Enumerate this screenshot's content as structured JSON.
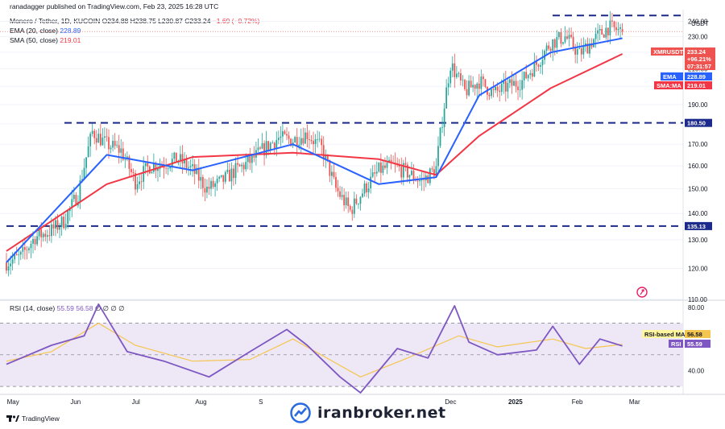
{
  "header": {
    "publisher": "ranadagger published on TradingView.com, Feb 23, 2025 16:28 UTC",
    "symbol_line": "Monero / Tether, 1D, KUCOIN",
    "ohlc": {
      "o_label": "O",
      "o": "234.88",
      "h_label": "H",
      "h": "238.75",
      "l_label": "L",
      "l": "230.87",
      "c_label": "C",
      "c": "233.24",
      "change": "−1.69 (−0.72%)"
    },
    "ema_line_label": "EMA (20, close)",
    "ema_value": "228.89",
    "sma_line_label": "SMA (50, close)",
    "sma_value": "219.01",
    "rsi_line_label": "RSI (14, close)",
    "rsi_values": "55.59  56.58",
    "rsi_extra": "∅ ∅ ∅ ∅"
  },
  "axis": {
    "unit": "USDT",
    "price_ticks": [
      "240.00",
      "230.00",
      "220.00",
      "210.00",
      "200.00",
      "190.00",
      "180.00",
      "170.00",
      "160.00",
      "150.00",
      "140.00",
      "130.00",
      "120.00",
      "110.00"
    ],
    "rsi_ticks": [
      "80.00",
      "40.00"
    ],
    "time_ticks": [
      "May",
      "Jun",
      "Jul",
      "Aug",
      "S",
      "Dec",
      "2025",
      "Feb",
      "Mar"
    ]
  },
  "badges": {
    "symbol": "XMRUSDT",
    "price": "233.24",
    "change_pct": "+96.21%",
    "countdown": "07:31:57",
    "ema_tag": "EMA",
    "ema_val": "228.89",
    "sma_tag": "SMA:MA",
    "sma_val": "219.01",
    "level_high": "180.50",
    "level_low": "135.13",
    "rsi_ma_tag": "RSI-based MA",
    "rsi_ma_val": "56.58",
    "rsi_tag": "RSI",
    "rsi_val": "55.59"
  },
  "footer": {
    "tv_brand": "TradingView",
    "watermark": "iranbroker.net"
  },
  "colors": {
    "up": "#26a69a",
    "down": "#ef5350",
    "ema": "#2962ff",
    "sma": "#f23645",
    "rsi": "#7e57c2",
    "rsi_ma": "#f5c64f",
    "level": "#1c2a8c",
    "rsi_band": "#ede7f6"
  },
  "chart_data": [
    {
      "type": "candlestick",
      "title": "Monero / Tether, 1D, KUCOIN",
      "ylim": [
        110,
        248
      ],
      "yscale": "log",
      "ylabel": "USDT",
      "x_range": [
        "2024-04-28",
        "2025-03-05"
      ],
      "candles_anchor_close": [
        [
          "2024-04-28",
          122
        ],
        [
          "2024-05-05",
          124
        ],
        [
          "2024-05-12",
          131
        ],
        [
          "2024-05-19",
          133
        ],
        [
          "2024-05-26",
          137
        ],
        [
          "2024-06-02",
          148
        ],
        [
          "2024-06-09",
          176
        ],
        [
          "2024-06-16",
          170
        ],
        [
          "2024-06-23",
          167
        ],
        [
          "2024-06-30",
          153
        ],
        [
          "2024-07-07",
          160
        ],
        [
          "2024-07-14",
          161
        ],
        [
          "2024-07-21",
          163
        ],
        [
          "2024-07-28",
          158
        ],
        [
          "2024-08-04",
          150
        ],
        [
          "2024-08-11",
          153
        ],
        [
          "2024-08-18",
          158
        ],
        [
          "2024-08-25",
          162
        ],
        [
          "2024-09-01",
          168
        ],
        [
          "2024-09-08",
          173
        ],
        [
          "2024-09-15",
          172
        ],
        [
          "2024-09-22",
          175
        ],
        [
          "2024-09-29",
          168
        ],
        [
          "2024-10-06",
          150
        ],
        [
          "2024-10-13",
          141
        ],
        [
          "2024-10-20",
          150
        ],
        [
          "2024-10-27",
          158
        ],
        [
          "2024-11-03",
          160
        ],
        [
          "2024-11-10",
          157
        ],
        [
          "2024-11-17",
          153
        ],
        [
          "2024-11-24",
          159
        ],
        [
          "2024-12-01",
          213
        ],
        [
          "2024-12-08",
          197
        ],
        [
          "2024-12-15",
          203
        ],
        [
          "2024-12-22",
          196
        ],
        [
          "2024-12-29",
          200
        ],
        [
          "2025-01-05",
          203
        ],
        [
          "2025-01-12",
          213
        ],
        [
          "2025-01-19",
          226
        ],
        [
          "2025-01-26",
          230
        ],
        [
          "2025-02-02",
          219
        ],
        [
          "2025-02-09",
          228
        ],
        [
          "2025-02-16",
          236
        ],
        [
          "2025-02-23",
          233.24
        ]
      ],
      "ohlc_last": {
        "open": 234.88,
        "high": 238.75,
        "low": 230.87,
        "close": 233.24
      },
      "ema20": [
        [
          "2024-04-28",
          122
        ],
        [
          "2024-06-16",
          165
        ],
        [
          "2024-07-28",
          158
        ],
        [
          "2024-09-15",
          170
        ],
        [
          "2024-10-27",
          152
        ],
        [
          "2024-11-24",
          155
        ],
        [
          "2024-12-15",
          195
        ],
        [
          "2025-01-19",
          220
        ],
        [
          "2025-02-23",
          228.89
        ]
      ],
      "sma50": [
        [
          "2024-04-28",
          126
        ],
        [
          "2024-06-16",
          152
        ],
        [
          "2024-07-28",
          164
        ],
        [
          "2024-09-15",
          166
        ],
        [
          "2024-10-27",
          163
        ],
        [
          "2024-11-24",
          156
        ],
        [
          "2024-12-15",
          174
        ],
        [
          "2025-01-19",
          199
        ],
        [
          "2025-02-23",
          219.01
        ]
      ],
      "horizontal_levels": [
        180.5,
        135.13,
        244
      ]
    },
    {
      "type": "line",
      "title": "RSI (14, close)",
      "ylim": [
        26,
        84
      ],
      "bands": [
        30,
        70
      ],
      "series": [
        {
          "name": "RSI",
          "points": [
            [
              "2024-04-28",
              44
            ],
            [
              "2024-05-20",
              56
            ],
            [
              "2024-06-05",
              62
            ],
            [
              "2024-06-12",
              82
            ],
            [
              "2024-06-26",
              52
            ],
            [
              "2024-07-14",
              46
            ],
            [
              "2024-08-05",
              36
            ],
            [
              "2024-08-25",
              52
            ],
            [
              "2024-09-12",
              66
            ],
            [
              "2024-09-22",
              56
            ],
            [
              "2024-10-08",
              36
            ],
            [
              "2024-10-18",
              26
            ],
            [
              "2024-11-05",
              54
            ],
            [
              "2024-11-20",
              48
            ],
            [
              "2024-12-03",
              81
            ],
            [
              "2024-12-10",
              58
            ],
            [
              "2024-12-24",
              50
            ],
            [
              "2025-01-12",
              53
            ],
            [
              "2025-01-20",
              68
            ],
            [
              "2025-02-02",
              44
            ],
            [
              "2025-02-12",
              60
            ],
            [
              "2025-02-23",
              55.59
            ]
          ]
        },
        {
          "name": "RSI-based MA",
          "points": [
            [
              "2024-04-28",
              46
            ],
            [
              "2024-05-20",
              52
            ],
            [
              "2024-06-12",
              70
            ],
            [
              "2024-06-30",
              56
            ],
            [
              "2024-07-28",
              46
            ],
            [
              "2024-08-25",
              47
            ],
            [
              "2024-09-15",
              60
            ],
            [
              "2024-10-18",
              36
            ],
            [
              "2024-11-10",
              48
            ],
            [
              "2024-12-05",
              62
            ],
            [
              "2024-12-24",
              55
            ],
            [
              "2025-01-20",
              60
            ],
            [
              "2025-02-05",
              54
            ],
            [
              "2025-02-23",
              56.58
            ]
          ]
        }
      ]
    }
  ]
}
